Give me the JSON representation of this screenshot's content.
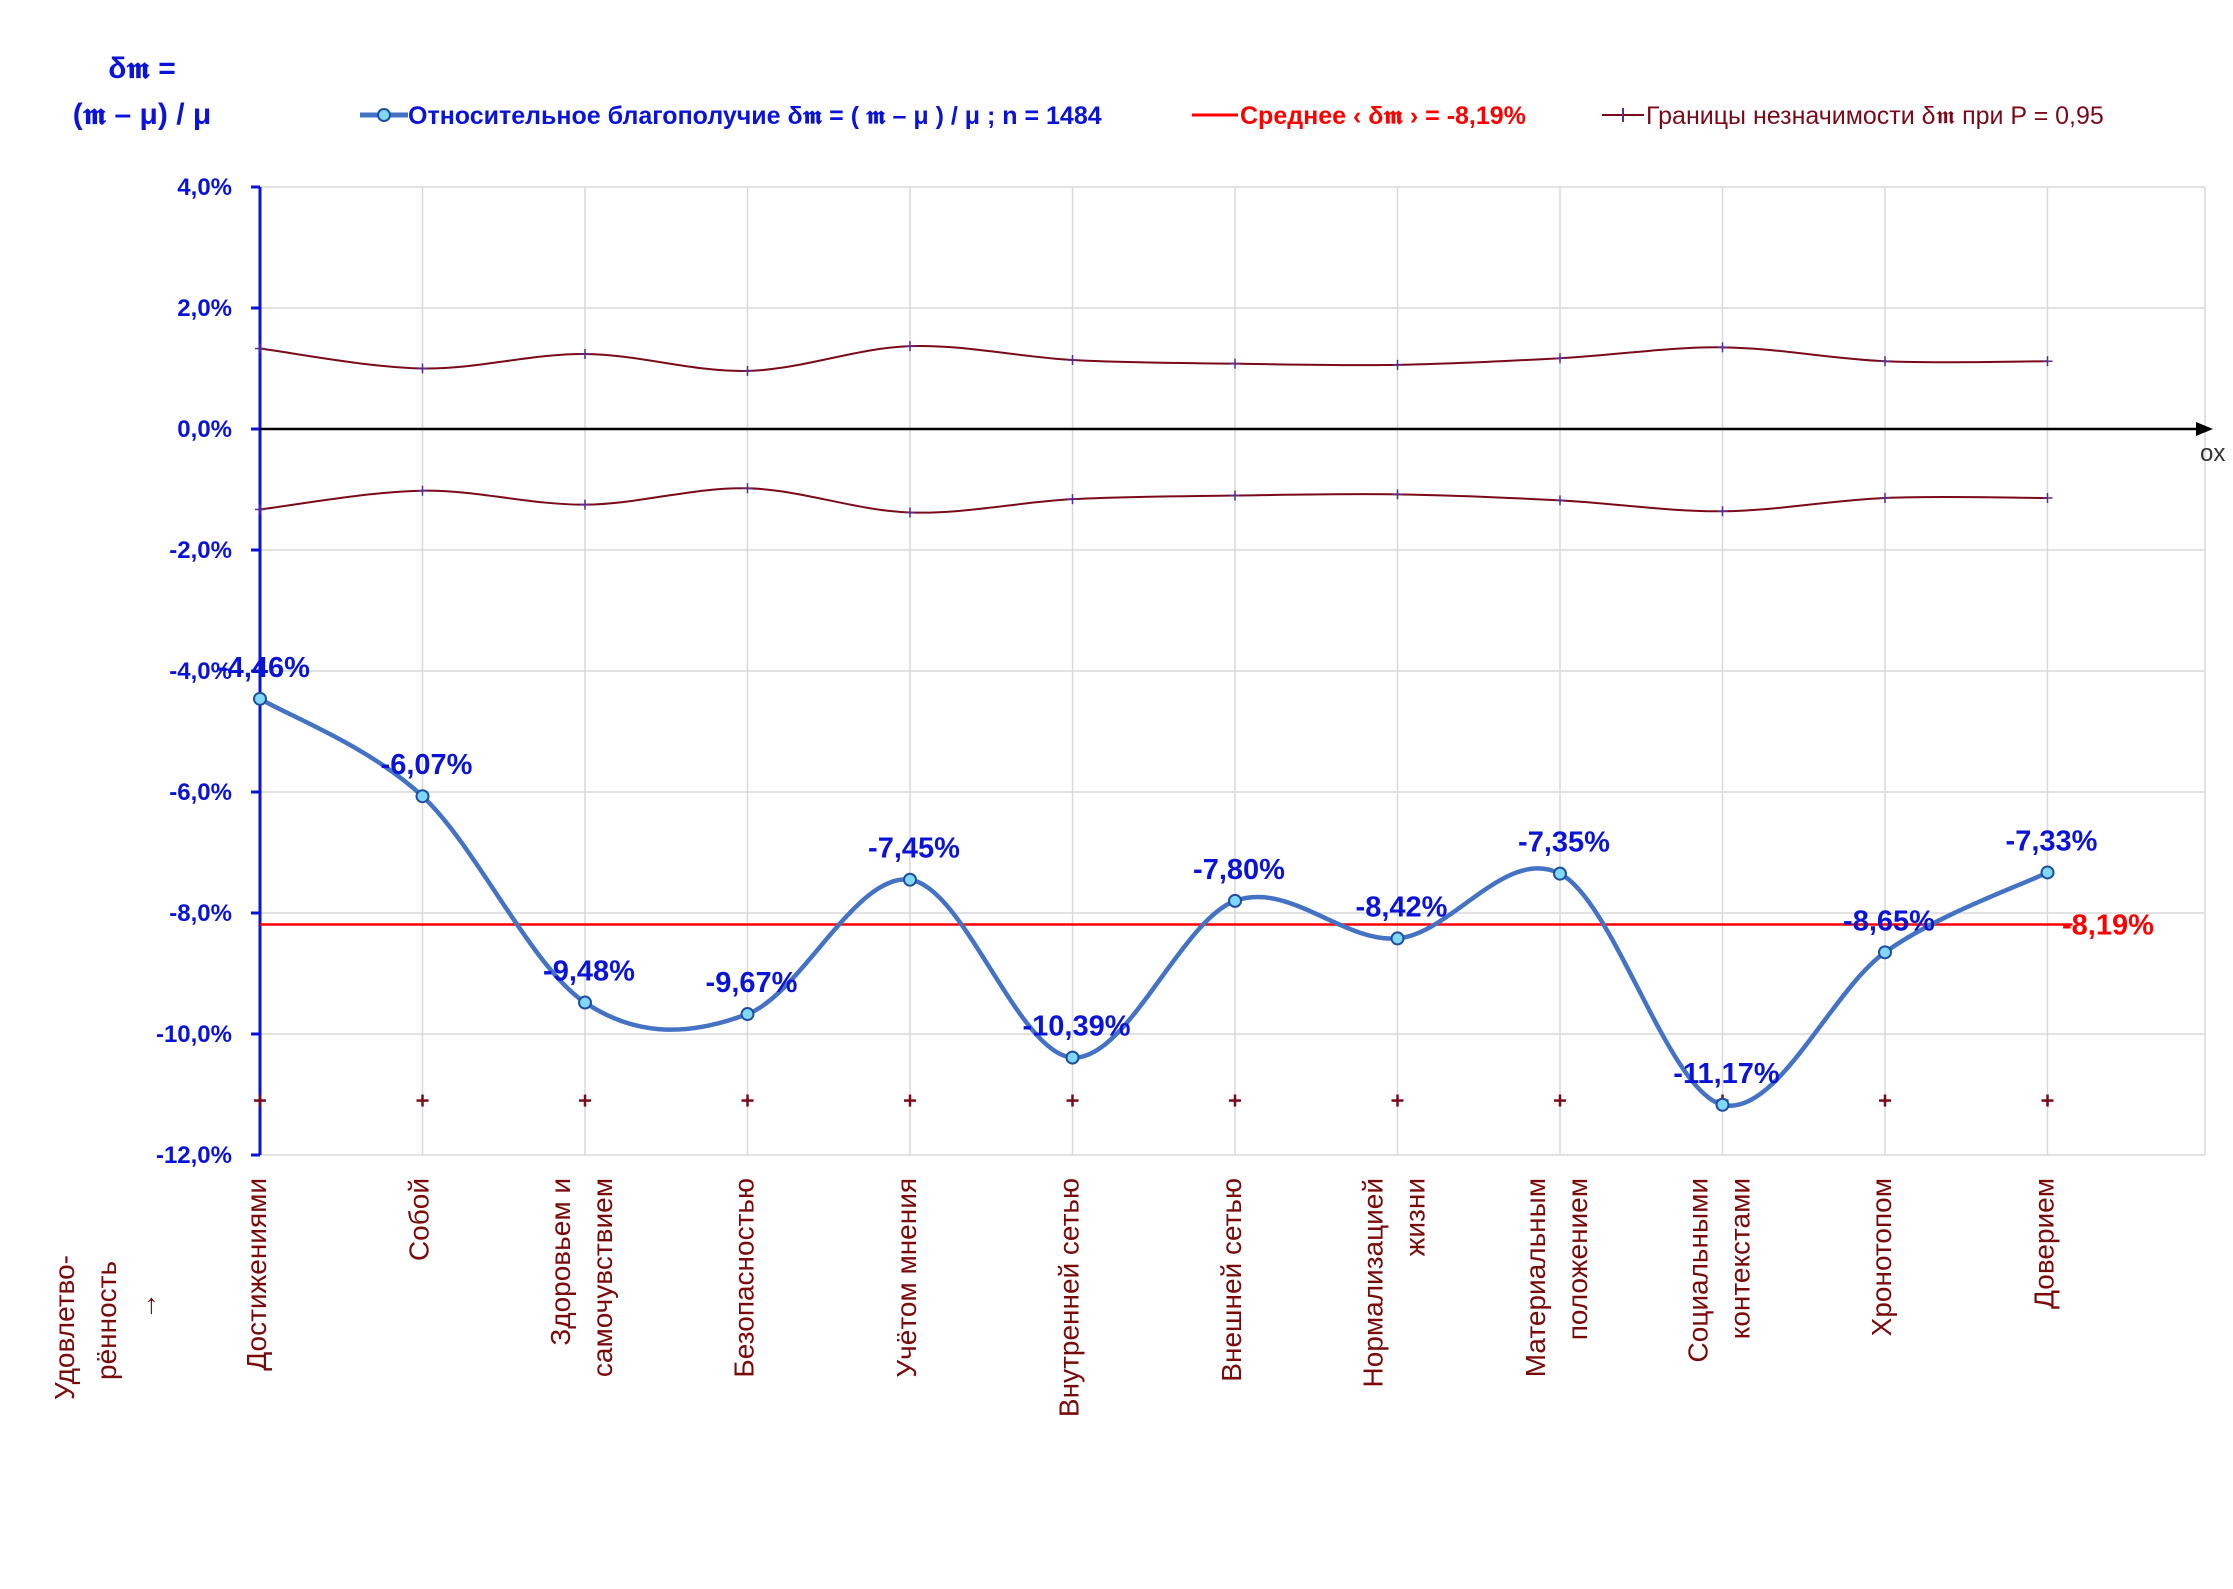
{
  "y_axis_title": {
    "line1": "δ𝖒 =",
    "line2": "(𝖒 – μ) / μ"
  },
  "x_axis_title": {
    "line1": "Удовлетво-",
    "line2": "рённость",
    "arrow": "→"
  },
  "axis_end_label": "ox",
  "legend": {
    "main_series": "Относительное благополучие δ𝖒 = ( 𝖒 – μ ) / μ ; n = 1484",
    "mean_line": "Среднее ‹ δ𝖒 › = -8,19%",
    "bounds": "Границы незначимости δ𝖒 при P = 0,95"
  },
  "mean_label": "-8,19%",
  "colors": {
    "main": "#4472c4",
    "mean": "#ff0000",
    "bounds": "#7a0a1a",
    "axis_blue": "#0a14d8",
    "category_text": "#7a0a0a",
    "grid": "#d9d9d9"
  },
  "chart_data": {
    "type": "line",
    "title": "",
    "xlabel": "Удовлетворённость →",
    "ylabel": "δ𝖒 = (𝖒 – μ) / μ",
    "ylim": [
      -12,
      4
    ],
    "yticks": [
      4,
      2,
      0,
      -2,
      -4,
      -6,
      -8,
      -10,
      -12
    ],
    "ytick_labels": [
      "4,0%",
      "2,0%",
      "0,0%",
      "-2,0%",
      "-4,0%",
      "-6,0%",
      "-8,0%",
      "-10,0%",
      "-12,0%"
    ],
    "grid": true,
    "legend_position": "top",
    "categories": [
      [
        "Достижениями"
      ],
      [
        "Собой"
      ],
      [
        "Здоровьем и",
        "самочувствием"
      ],
      [
        "Безопасностью"
      ],
      [
        "Учётом мнения"
      ],
      [
        "Внутренней сетью"
      ],
      [
        "Внешней сетью"
      ],
      [
        "Нормализацией",
        "жизни"
      ],
      [
        "Материальным",
        "положением"
      ],
      [
        "Социальными",
        "контекстами"
      ],
      [
        "Хронотопом"
      ],
      [
        "Доверием"
      ]
    ],
    "series": [
      {
        "name": "Относительное благополучие δ𝖒 = ( 𝖒 – μ ) / μ ; n = 1484",
        "values": [
          -4.46,
          -6.07,
          -9.48,
          -9.67,
          -7.45,
          -10.39,
          -7.8,
          -8.42,
          -7.35,
          -11.17,
          -8.65,
          -7.33
        ],
        "labels": [
          "-4,46%",
          "-6,07%",
          "-9,48%",
          "-9,67%",
          "-7,45%",
          "-10,39%",
          "-7,80%",
          "-8,42%",
          "-7,35%",
          "-11,17%",
          "-8,65%",
          "-7,33%"
        ]
      },
      {
        "name": "Среднее ‹ δ𝖒 › = -8,19%",
        "constant": -8.19
      },
      {
        "name": "Границы незначимости δ𝖒 при P = 0,95",
        "upper": [
          1.33,
          1.0,
          1.24,
          0.96,
          1.37,
          1.14,
          1.08,
          1.06,
          1.17,
          1.35,
          1.12,
          1.12
        ],
        "lower": [
          -1.33,
          -1.02,
          -1.25,
          -0.98,
          -1.38,
          -1.16,
          -1.1,
          -1.08,
          -1.18,
          -1.36,
          -1.14,
          -1.14
        ],
        "marker_row": -11.1
      }
    ]
  }
}
